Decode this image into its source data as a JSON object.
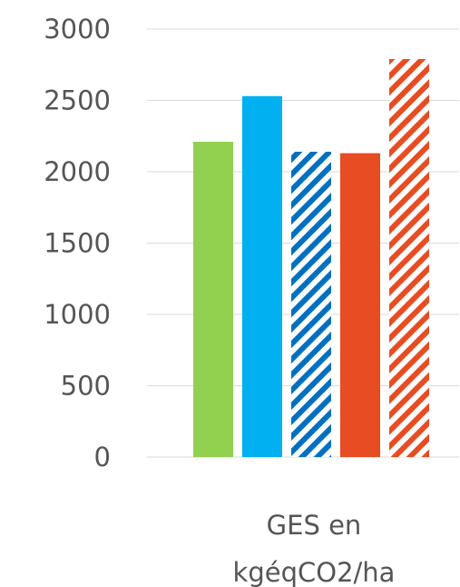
{
  "chart_data": {
    "type": "bar",
    "categories": [
      "GES en kgéqCO2/ha"
    ],
    "category_label_lines": [
      "GES en",
      "kgéqCO2/ha"
    ],
    "series": [
      {
        "values": [
          2210
        ],
        "color": "#92d050",
        "pattern": "solid"
      },
      {
        "values": [
          2530
        ],
        "color": "#00b0f0",
        "pattern": "solid"
      },
      {
        "values": [
          2140
        ],
        "color": "#0070c0",
        "pattern": "hatched"
      },
      {
        "values": [
          2130
        ],
        "color": "#e84c22",
        "pattern": "solid"
      },
      {
        "values": [
          2790
        ],
        "color": "#e84c22",
        "pattern": "hatched"
      }
    ],
    "ylim": [
      0,
      3000
    ],
    "yticks": [
      "0",
      "500",
      "1000",
      "1500",
      "2000",
      "2500",
      "3000"
    ],
    "grid": true,
    "legend": "none",
    "title": "",
    "xlabel": "",
    "ylabel": ""
  }
}
